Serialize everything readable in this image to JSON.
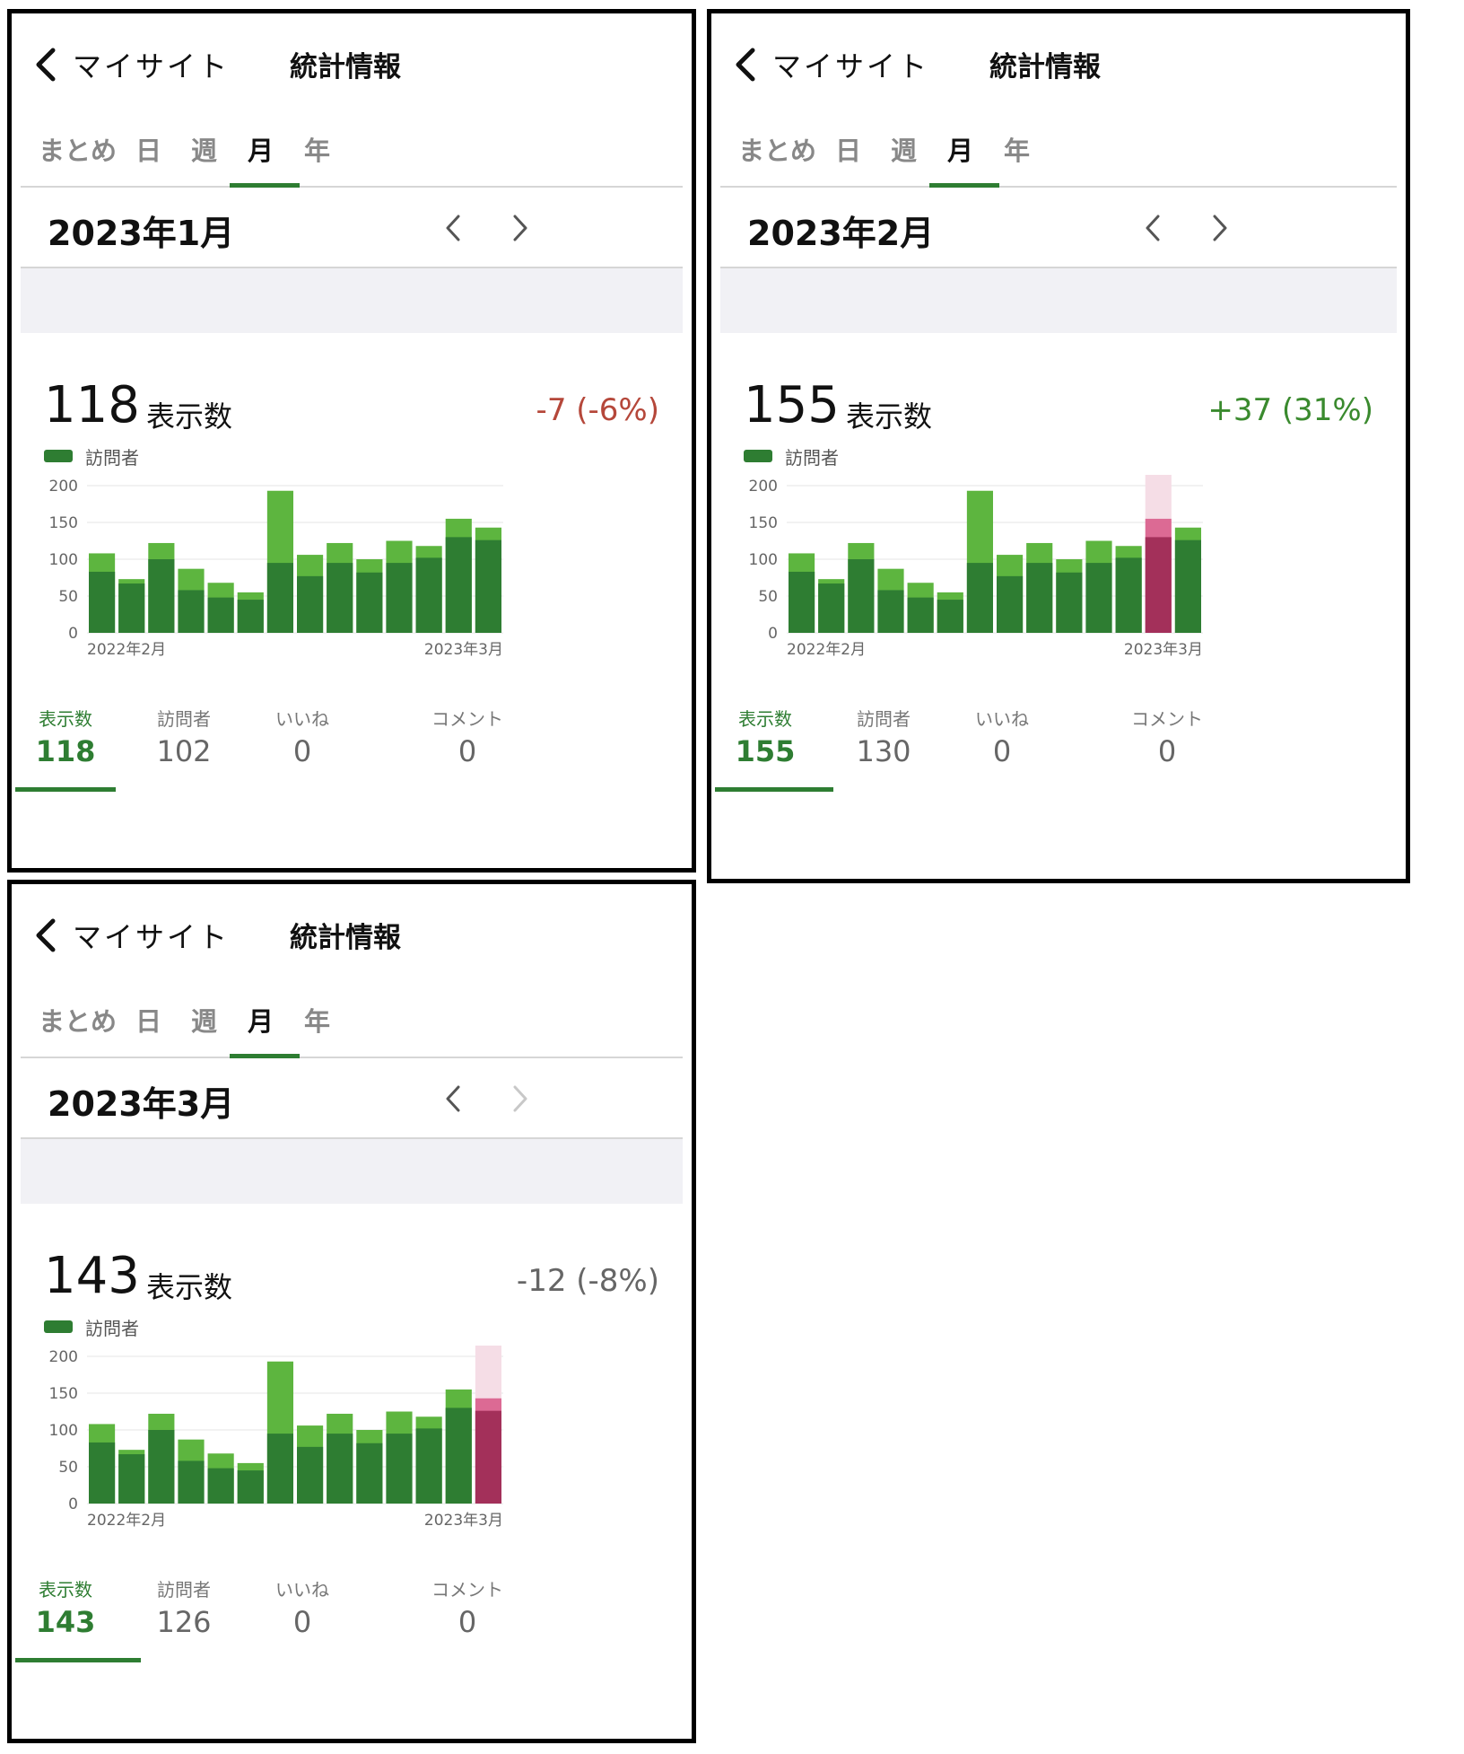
{
  "nav": {
    "back_label": "マイサイト",
    "title": "統計情報"
  },
  "tabs": [
    "まとめ",
    "日",
    "週",
    "月",
    "年"
  ],
  "active_tab_label": "月",
  "headline_unit": "表示数",
  "legend_label": "訪問者",
  "stat_labels": {
    "views": "表示数",
    "visitors": "訪問者",
    "likes": "いいね",
    "comments": "コメント"
  },
  "colors": {
    "visitors_dark_green": "#2e7d32",
    "views_light_green": "#5db53f",
    "current_month_visitors": "#a3305a",
    "current_month_views": "#dc6a94",
    "current_month_pale": "#f5dde6",
    "delta_negative_red": "#b5473a",
    "delta_positive_green": "#3a8a2e",
    "delta_neutral_gray": "#666666"
  },
  "panels": {
    "jan": {
      "month": "2023年1月",
      "views": "118",
      "delta": "-7 (-6%)",
      "stats": {
        "views": "118",
        "visitors": "102",
        "likes": "0",
        "comments": "0"
      }
    },
    "feb": {
      "month": "2023年2月",
      "views": "155",
      "delta": "+37 (31%)",
      "stats": {
        "views": "155",
        "visitors": "130",
        "likes": "0",
        "comments": "0"
      }
    },
    "mar": {
      "month": "2023年3月",
      "views": "143",
      "delta": "-12 (-8%)",
      "stats": {
        "views": "143",
        "visitors": "126",
        "likes": "0",
        "comments": "0"
      }
    }
  },
  "chart_data": [
    {
      "type": "bar",
      "panel": "2023年1月",
      "x_start_label": "2022年2月",
      "x_end_label": "2023年3月",
      "yticks": [
        0,
        50,
        100,
        150,
        200
      ],
      "ylim": [
        0,
        200
      ],
      "series": [
        {
          "name": "訪問者",
          "values": [
            83,
            67,
            100,
            58,
            48,
            45,
            95,
            77,
            95,
            82,
            95,
            102,
            130,
            126
          ]
        },
        {
          "name": "表示数",
          "values": [
            108,
            73,
            122,
            87,
            68,
            55,
            193,
            106,
            122,
            100,
            125,
            118,
            155,
            143
          ]
        }
      ],
      "highlight_index": null
    },
    {
      "type": "bar",
      "panel": "2023年2月",
      "x_start_label": "2022年2月",
      "x_end_label": "2023年3月",
      "yticks": [
        0,
        50,
        100,
        150,
        200
      ],
      "ylim": [
        0,
        200
      ],
      "series": [
        {
          "name": "訪問者",
          "values": [
            83,
            67,
            100,
            58,
            48,
            45,
            95,
            77,
            95,
            82,
            95,
            102,
            130,
            126
          ]
        },
        {
          "name": "表示数",
          "values": [
            108,
            73,
            122,
            87,
            68,
            55,
            193,
            106,
            122,
            100,
            125,
            118,
            155,
            143
          ]
        }
      ],
      "highlight_index": 12
    },
    {
      "type": "bar",
      "panel": "2023年3月",
      "x_start_label": "2022年2月",
      "x_end_label": "2023年3月",
      "yticks": [
        0,
        50,
        100,
        150,
        200
      ],
      "ylim": [
        0,
        200
      ],
      "series": [
        {
          "name": "訪問者",
          "values": [
            83,
            67,
            100,
            58,
            48,
            45,
            95,
            77,
            95,
            82,
            95,
            102,
            130,
            126
          ]
        },
        {
          "name": "表示数",
          "values": [
            108,
            73,
            122,
            87,
            68,
            55,
            193,
            106,
            122,
            100,
            125,
            118,
            155,
            143
          ]
        }
      ],
      "highlight_index": 13
    }
  ]
}
